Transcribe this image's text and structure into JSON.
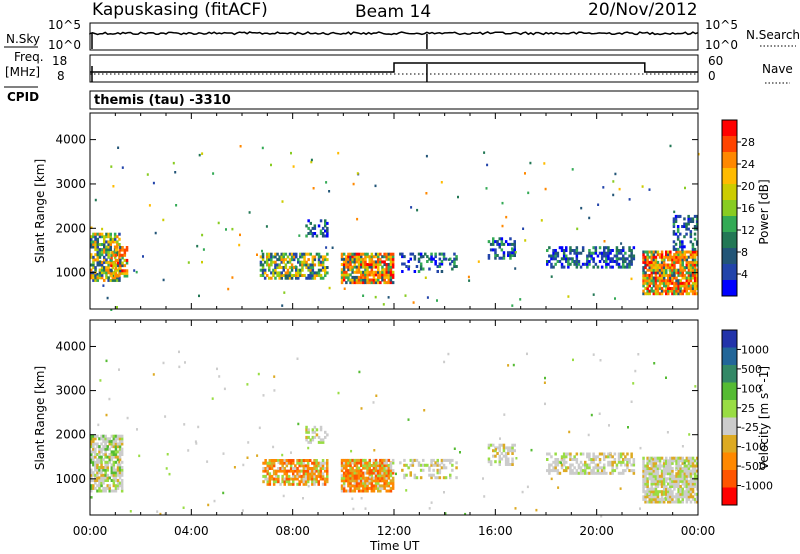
{
  "header": {
    "station": "Kapuskasing (fitACF)",
    "beam": "Beam 14",
    "date": "20/Nov/2012"
  },
  "status_panels": {
    "nsky_label": "N.Sky",
    "nsky_ticks": [
      "10^5",
      "10^0"
    ],
    "nsearch_label": "N.Search",
    "nsearch_ticks": [
      "10^5",
      "10^0"
    ],
    "freq_label_1": "Freq.",
    "freq_label_2": "[MHz]",
    "freq_ticks": [
      "18",
      "8"
    ],
    "nave_label": "Nave",
    "nave_ticks": [
      "60",
      "0"
    ],
    "cpid_label": "CPID",
    "cpid_text": "themis (tau) -3310"
  },
  "colorbars": {
    "power": {
      "label": "Power [dB]",
      "ticks": [
        "28",
        "24",
        "20",
        "16",
        "12",
        "8",
        "4"
      ],
      "colors": [
        "#ff0000",
        "#ff4400",
        "#ff8800",
        "#ffbb00",
        "#cccc00",
        "#88cc22",
        "#33aa55",
        "#227755",
        "#225577",
        "#2244aa",
        "#0000ff"
      ]
    },
    "velocity": {
      "label": "Velocity [m s^-1]",
      "ticks": [
        "1000",
        "500",
        "100",
        "25",
        "-25",
        "-100",
        "-500",
        "-1000"
      ],
      "colors": [
        "#2233aa",
        "#226699",
        "#338866",
        "#55bb33",
        "#99dd44",
        "#cccccc",
        "#ddaa22",
        "#ff8800",
        "#ff5500",
        "#ff0000"
      ]
    }
  },
  "chart_data": [
    {
      "type": "heatmap",
      "title": "Power",
      "xlabel": "Time UT",
      "ylabel": "Slant Range [km]",
      "x_ticks": [
        "00:00",
        "04:00",
        "08:00",
        "12:00",
        "16:00",
        "20:00",
        "00:00"
      ],
      "y_ticks": [
        1000,
        2000,
        3000,
        4000
      ],
      "xlim_hours": [
        0,
        24
      ],
      "ylim_km": [
        180,
        4600
      ],
      "clusters": [
        {
          "t0": 0.0,
          "t1": 1.2,
          "r0": 800,
          "r1": 1900,
          "density": 0.75,
          "level": "mid"
        },
        {
          "t0": 0.8,
          "t1": 1.5,
          "r0": 900,
          "r1": 1600,
          "density": 0.5,
          "level": "high"
        },
        {
          "t0": 6.7,
          "t1": 9.4,
          "r0": 850,
          "r1": 1450,
          "density": 0.65,
          "level": "mid"
        },
        {
          "t0": 8.5,
          "t1": 9.4,
          "r0": 1800,
          "r1": 2200,
          "density": 0.4,
          "level": "low"
        },
        {
          "t0": 9.9,
          "t1": 12.0,
          "r0": 750,
          "r1": 1450,
          "density": 0.85,
          "level": "high"
        },
        {
          "t0": 12.2,
          "t1": 14.5,
          "r0": 1000,
          "r1": 1450,
          "density": 0.3,
          "level": "low"
        },
        {
          "t0": 15.7,
          "t1": 16.8,
          "r0": 1300,
          "r1": 1800,
          "density": 0.5,
          "level": "low"
        },
        {
          "t0": 18.0,
          "t1": 21.5,
          "r0": 1100,
          "r1": 1600,
          "density": 0.55,
          "level": "low"
        },
        {
          "t0": 21.8,
          "t1": 24.0,
          "r0": 500,
          "r1": 1500,
          "density": 0.85,
          "level": "high"
        },
        {
          "t0": 23.0,
          "t1": 24.0,
          "r0": 1500,
          "r1": 2300,
          "density": 0.4,
          "level": "low"
        }
      ]
    },
    {
      "type": "heatmap",
      "title": "Velocity",
      "xlabel": "Time UT",
      "ylabel": "Slant Range [km]",
      "x_ticks": [
        "00:00",
        "04:00",
        "08:00",
        "12:00",
        "16:00",
        "20:00",
        "00:00"
      ],
      "y_ticks": [
        1000,
        2000,
        3000,
        4000
      ],
      "xlim_hours": [
        0,
        24
      ],
      "ylim_km": [
        180,
        4600
      ],
      "clusters": [
        {
          "t0": 0.0,
          "t1": 1.3,
          "r0": 700,
          "r1": 2000,
          "density": 0.75,
          "level": "green-gray"
        },
        {
          "t0": 6.8,
          "t1": 9.4,
          "r0": 850,
          "r1": 1450,
          "density": 0.7,
          "level": "orange"
        },
        {
          "t0": 8.5,
          "t1": 9.4,
          "r0": 1800,
          "r1": 2200,
          "density": 0.4,
          "level": "gray"
        },
        {
          "t0": 9.9,
          "t1": 12.0,
          "r0": 700,
          "r1": 1450,
          "density": 0.85,
          "level": "orange"
        },
        {
          "t0": 12.2,
          "t1": 14.5,
          "r0": 1000,
          "r1": 1450,
          "density": 0.3,
          "level": "gray"
        },
        {
          "t0": 15.7,
          "t1": 16.8,
          "r0": 1300,
          "r1": 1800,
          "density": 0.5,
          "level": "gray"
        },
        {
          "t0": 18.0,
          "t1": 21.5,
          "r0": 1100,
          "r1": 1600,
          "density": 0.55,
          "level": "gray"
        },
        {
          "t0": 21.8,
          "t1": 24.0,
          "r0": 450,
          "r1": 1500,
          "density": 0.85,
          "level": "gray"
        }
      ]
    }
  ]
}
